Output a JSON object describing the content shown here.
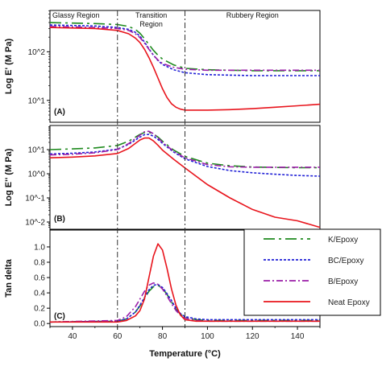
{
  "chart_data": {
    "type": "line",
    "x_axis": {
      "label": "Temperature (°C)",
      "range": [
        30,
        150
      ],
      "ticks": [
        40,
        60,
        80,
        100,
        120,
        140
      ]
    },
    "regions": [
      {
        "label": "Glassy Region",
        "from": 30,
        "to": 60
      },
      {
        "label": "Transition\nRegion",
        "from": 60,
        "to": 90
      },
      {
        "label": "Rubbery Region",
        "from": 90,
        "to": 150
      }
    ],
    "boundaries": [
      60,
      90
    ],
    "series_styles": [
      {
        "name": "K/Epoxy",
        "color": "#1e8a1e",
        "dash": "14,5,3,5"
      },
      {
        "name": "BC/Epoxy",
        "color": "#1f1fd6",
        "dash": "3,2"
      },
      {
        "name": "B/Epoxy",
        "color": "#9b1fa8",
        "dash": "8,3,2,3"
      },
      {
        "name": "Neat Epoxy",
        "color": "#e8141c",
        "dash": ""
      }
    ],
    "panels": [
      {
        "id": "A",
        "panel_label": "(A)",
        "scale": "log",
        "ylabel": "Log E' (M Pa)",
        "yrange_log10": [
          0.55,
          2.85
        ],
        "ticks": [
          {
            "label": "10^1",
            "value_log10": 1
          },
          {
            "label": "10^2",
            "value_log10": 2
          }
        ],
        "series": [
          {
            "name": "K/Epoxy",
            "x": [
              30,
              40,
              50,
              60,
              65,
              68,
              70,
              72,
              74,
              76,
              78,
              80,
              85,
              90,
              100,
              110,
              120,
              130,
              140,
              150
            ],
            "y": [
              2.6,
              2.59,
              2.58,
              2.56,
              2.52,
              2.46,
              2.38,
              2.27,
              2.15,
              2.03,
              1.93,
              1.85,
              1.73,
              1.66,
              1.63,
              1.62,
              1.61,
              1.61,
              1.61,
              1.61
            ]
          },
          {
            "name": "BC/Epoxy",
            "x": [
              30,
              40,
              50,
              60,
              65,
              68,
              70,
              72,
              74,
              76,
              78,
              80,
              85,
              90,
              100,
              110,
              120,
              130,
              140,
              150
            ],
            "y": [
              2.55,
              2.54,
              2.53,
              2.5,
              2.46,
              2.4,
              2.32,
              2.2,
              2.06,
              1.93,
              1.82,
              1.74,
              1.63,
              1.57,
              1.53,
              1.52,
              1.51,
              1.51,
              1.51,
              1.51
            ]
          },
          {
            "name": "B/Epoxy",
            "x": [
              30,
              40,
              50,
              60,
              65,
              68,
              70,
              72,
              74,
              76,
              78,
              80,
              85,
              90,
              100,
              110,
              120,
              130,
              140,
              150
            ],
            "y": [
              2.52,
              2.51,
              2.5,
              2.48,
              2.44,
              2.37,
              2.29,
              2.18,
              2.05,
              1.93,
              1.83,
              1.76,
              1.68,
              1.64,
              1.62,
              1.62,
              1.62,
              1.62,
              1.62,
              1.62
            ]
          },
          {
            "name": "Neat Epoxy",
            "x": [
              30,
              40,
              50,
              60,
              65,
              68,
              70,
              72,
              74,
              76,
              78,
              80,
              82,
              84,
              86,
              88,
              90,
              100,
              110,
              120,
              130,
              140,
              150
            ],
            "y": [
              2.5,
              2.49,
              2.48,
              2.44,
              2.37,
              2.28,
              2.19,
              2.05,
              1.88,
              1.68,
              1.46,
              1.24,
              1.06,
              0.93,
              0.86,
              0.82,
              0.8,
              0.8,
              0.81,
              0.83,
              0.86,
              0.89,
              0.92
            ]
          }
        ]
      },
      {
        "id": "B",
        "panel_label": "(B)",
        "scale": "log",
        "ylabel": "Log E'' (M Pa)",
        "yrange_log10": [
          -2.3,
          2.0
        ],
        "ticks": [
          {
            "label": "10^1",
            "value_log10": 1
          },
          {
            "label": "10^0",
            "value_log10": 0
          },
          {
            "label": "10^-1",
            "value_log10": -1
          },
          {
            "label": "10^-2",
            "value_log10": -2
          }
        ],
        "series": [
          {
            "name": "K/Epoxy",
            "x": [
              30,
              40,
              50,
              60,
              65,
              70,
              72,
              74,
              76,
              78,
              80,
              85,
              90,
              100,
              110,
              120,
              130,
              140,
              150
            ],
            "y": [
              1.0,
              1.03,
              1.07,
              1.17,
              1.35,
              1.63,
              1.71,
              1.72,
              1.65,
              1.52,
              1.35,
              0.98,
              0.72,
              0.44,
              0.33,
              0.28,
              0.26,
              0.25,
              0.25
            ]
          },
          {
            "name": "BC/Epoxy",
            "x": [
              30,
              40,
              50,
              60,
              65,
              70,
              72,
              74,
              76,
              78,
              80,
              85,
              90,
              100,
              110,
              120,
              130,
              140,
              150
            ],
            "y": [
              0.82,
              0.85,
              0.9,
              1.02,
              1.22,
              1.52,
              1.62,
              1.63,
              1.56,
              1.42,
              1.26,
              0.9,
              0.62,
              0.3,
              0.13,
              0.04,
              -0.02,
              -0.07,
              -0.1
            ]
          },
          {
            "name": "B/Epoxy",
            "x": [
              30,
              40,
              50,
              60,
              65,
              70,
              72,
              74,
              76,
              78,
              80,
              85,
              90,
              100,
              110,
              120,
              130,
              140,
              150
            ],
            "y": [
              0.78,
              0.81,
              0.87,
              1.0,
              1.25,
              1.6,
              1.74,
              1.76,
              1.66,
              1.49,
              1.3,
              0.93,
              0.66,
              0.38,
              0.29,
              0.27,
              0.27,
              0.27,
              0.27
            ]
          },
          {
            "name": "Neat Epoxy",
            "x": [
              30,
              40,
              50,
              60,
              65,
              70,
              72,
              74,
              76,
              78,
              80,
              85,
              90,
              100,
              110,
              120,
              130,
              140,
              150
            ],
            "y": [
              0.66,
              0.69,
              0.74,
              0.84,
              1.05,
              1.4,
              1.48,
              1.48,
              1.36,
              1.18,
              0.98,
              0.6,
              0.24,
              -0.45,
              -1.0,
              -1.48,
              -1.8,
              -1.95,
              -2.22
            ]
          }
        ]
      },
      {
        "id": "C",
        "panel_label": "(C)",
        "scale": "linear",
        "ylabel": "Tan delta",
        "yrange": [
          -0.04,
          1.22
        ],
        "ticks": [
          {
            "label": "0.0",
            "value": 0
          },
          {
            "label": "0.2",
            "value": 0.2
          },
          {
            "label": "0.4",
            "value": 0.4
          },
          {
            "label": "0.6",
            "value": 0.6
          },
          {
            "label": "0.8",
            "value": 0.8
          },
          {
            "label": "1.0",
            "value": 1.0
          }
        ],
        "series": [
          {
            "name": "K/Epoxy",
            "x": [
              30,
              60,
              64,
              68,
              70,
              72,
              74,
              76,
              78,
              80,
              82,
              84,
              86,
              88,
              90,
              95,
              100,
              110,
              120,
              130,
              140,
              150
            ],
            "y": [
              0.02,
              0.03,
              0.06,
              0.15,
              0.23,
              0.33,
              0.42,
              0.48,
              0.5,
              0.46,
              0.38,
              0.28,
              0.19,
              0.12,
              0.08,
              0.05,
              0.04,
              0.04,
              0.04,
              0.04,
              0.04,
              0.04
            ]
          },
          {
            "name": "BC/Epoxy",
            "x": [
              30,
              60,
              64,
              68,
              70,
              72,
              74,
              76,
              78,
              80,
              82,
              84,
              86,
              88,
              90,
              95,
              100,
              110,
              120,
              130,
              140,
              150
            ],
            "y": [
              0.02,
              0.03,
              0.06,
              0.15,
              0.24,
              0.34,
              0.44,
              0.5,
              0.51,
              0.47,
              0.39,
              0.3,
              0.2,
              0.13,
              0.09,
              0.06,
              0.05,
              0.05,
              0.05,
              0.05,
              0.05,
              0.05
            ]
          },
          {
            "name": "B/Epoxy",
            "x": [
              30,
              60,
              64,
              68,
              70,
              72,
              74,
              76,
              78,
              80,
              82,
              84,
              86,
              88,
              90,
              95,
              100,
              110,
              120,
              130,
              140,
              150
            ],
            "y": [
              0.02,
              0.04,
              0.09,
              0.22,
              0.32,
              0.42,
              0.5,
              0.53,
              0.51,
              0.45,
              0.36,
              0.26,
              0.17,
              0.11,
              0.07,
              0.04,
              0.03,
              0.03,
              0.03,
              0.03,
              0.03,
              0.03
            ]
          },
          {
            "name": "Neat Epoxy",
            "x": [
              30,
              60,
              64,
              68,
              70,
              72,
              74,
              76,
              78,
              80,
              82,
              84,
              86,
              88,
              90,
              95,
              100,
              110,
              120,
              130,
              140,
              150
            ],
            "y": [
              0.02,
              0.02,
              0.04,
              0.1,
              0.17,
              0.32,
              0.6,
              0.88,
              1.04,
              0.96,
              0.72,
              0.45,
              0.24,
              0.11,
              0.05,
              0.03,
              0.03,
              0.03,
              0.03,
              0.03,
              0.03,
              0.03
            ]
          }
        ]
      }
    ],
    "legend": {
      "placement": "right, panel C",
      "entries": [
        "K/Epoxy",
        "BC/Epoxy",
        "B/Epoxy",
        "Neat Epoxy"
      ]
    }
  }
}
